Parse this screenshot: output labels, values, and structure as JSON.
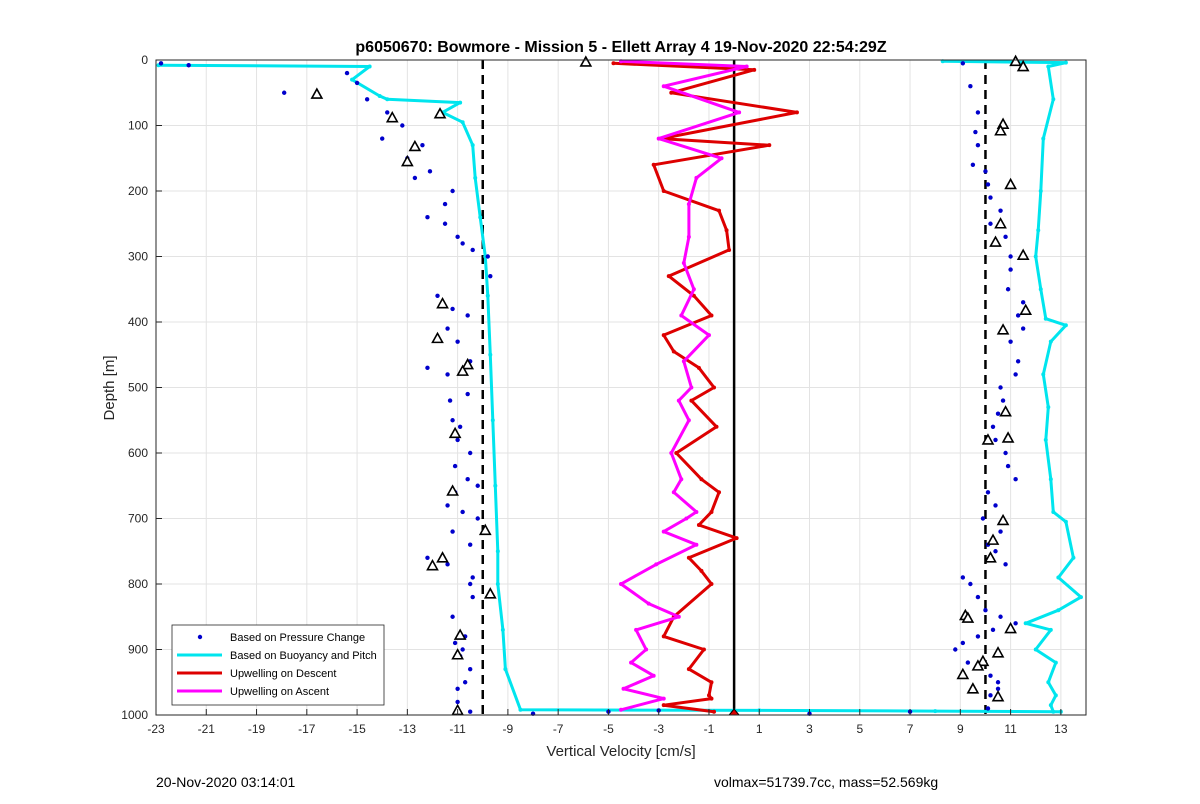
{
  "chart_data": {
    "type": "scatter",
    "title": "p6050670: Bowmore - Mission 5 - Ellett Array 4 19-Nov-2020 22:54:29Z",
    "xlabel": "Vertical Velocity [cm/s]",
    "ylabel": "Depth [m]",
    "xlim": [
      -23,
      14
    ],
    "ylim": [
      0,
      1000
    ],
    "y_reversed": true,
    "grid": true,
    "xticks": [
      "-23",
      "-21",
      "-19",
      "-17",
      "-15",
      "-13",
      "-11",
      "-9",
      "-7",
      "-5",
      "-3",
      "-1",
      "1",
      "3",
      "5",
      "7",
      "9",
      "11",
      "13"
    ],
    "yticks": [
      "0",
      "100",
      "200",
      "300",
      "400",
      "500",
      "600",
      "700",
      "800",
      "900",
      "1000"
    ],
    "legend_location": "bottom-left",
    "legend": [
      {
        "label": "Based on Pressure Change",
        "color": "#0000cc",
        "style": "dots"
      },
      {
        "label": "Based on Buoyancy and Pitch",
        "color": "#00e5ee",
        "style": "line"
      },
      {
        "label": "Upwelling on Descent",
        "color": "#dd0000",
        "style": "line"
      },
      {
        "label": "Upwelling on Ascent",
        "color": "#ff00ff",
        "style": "line"
      }
    ],
    "reference_lines": [
      {
        "x": -10,
        "style": "dashed",
        "color": "#000000"
      },
      {
        "x": 10,
        "style": "dashed",
        "color": "#000000"
      },
      {
        "x": 0,
        "style": "solid",
        "color": "#000000"
      }
    ],
    "series": [
      {
        "name": "Based on Buoyancy and Pitch",
        "color": "#00e5ee",
        "kind": "line",
        "x": [
          -22.9,
          -14.5,
          -15.2,
          -14.1,
          -13.8,
          -10.9,
          -11.6,
          -10.8,
          -10.4,
          -10.3,
          -10.1,
          -9.9,
          -9.8,
          -9.7,
          -9.6,
          -9.5,
          -9.4,
          -9.4,
          -9.2,
          -9.1,
          -8.5,
          1,
          8,
          13.0
        ],
        "y": [
          8,
          10,
          30,
          55,
          60,
          65,
          80,
          95,
          130,
          180,
          240,
          300,
          360,
          450,
          550,
          650,
          750,
          800,
          870,
          930,
          992,
          993,
          994,
          995
        ]
      },
      {
        "name": "Based on Buoyancy and Pitch",
        "color": "#00e5ee",
        "kind": "line",
        "x": [
          8.3,
          13.2,
          12.5,
          12.7,
          12.3,
          12.2,
          12.1,
          12.0,
          12.2,
          12.4,
          13.2,
          12.6,
          12.3,
          12.5,
          12.4,
          12.6,
          12.7,
          13.2,
          13.5,
          12.9,
          13.8,
          12.9,
          11.6,
          12.6,
          12.0,
          12.8,
          12.5,
          12.8,
          12.6,
          12.7
        ],
        "y": [
          2,
          4,
          10,
          60,
          120,
          200,
          260,
          300,
          350,
          395,
          405,
          430,
          480,
          530,
          580,
          640,
          690,
          705,
          760,
          790,
          820,
          840,
          860,
          870,
          900,
          920,
          950,
          970,
          985,
          995
        ]
      },
      {
        "name": "Upwelling on Descent",
        "color": "#dd0000",
        "kind": "line",
        "x": [
          -4.8,
          0.8,
          -2.5,
          2.5,
          -2.9,
          1.4,
          -3.2,
          -2.8,
          -0.6,
          -0.3,
          -0.2,
          -2.6,
          -1.6,
          -0.9,
          -2.8,
          -2.4,
          -1.4,
          -0.8,
          -1.7,
          -0.7,
          -2.3,
          -1.3,
          -0.6,
          -0.9,
          -1.4,
          0.1,
          -1.8,
          -1.3,
          -0.9,
          -2.4,
          -2.8,
          -1.2,
          -1.8,
          -0.9,
          -1.0,
          -0.9,
          -2.8,
          -0.8
        ],
        "y": [
          5,
          15,
          50,
          80,
          120,
          130,
          160,
          200,
          230,
          260,
          290,
          330,
          360,
          390,
          420,
          445,
          470,
          500,
          520,
          560,
          600,
          640,
          660,
          690,
          710,
          730,
          760,
          780,
          800,
          850,
          880,
          900,
          930,
          950,
          970,
          975,
          985,
          995
        ]
      },
      {
        "name": "Upwelling on Ascent",
        "color": "#ff00ff",
        "kind": "line",
        "x": [
          -4.5,
          0.5,
          -2.8,
          0.2,
          -3.0,
          -0.5,
          -1.5,
          -1.8,
          -1.8,
          -2.0,
          -1.6,
          -2.1,
          -1.0,
          -2.0,
          -1.7,
          -2.2,
          -1.8,
          -2.5,
          -2.1,
          -2.4,
          -1.5,
          -1.9,
          -2.8,
          -1.5,
          -3.1,
          -4.5,
          -3.4,
          -2.2,
          -3.9,
          -3.5,
          -4.1,
          -3.2,
          -4.4,
          -2.8,
          -4.5
        ],
        "y": [
          2,
          10,
          40,
          80,
          120,
          150,
          180,
          220,
          270,
          310,
          350,
          390,
          420,
          460,
          500,
          520,
          550,
          600,
          640,
          660,
          690,
          700,
          720,
          740,
          770,
          800,
          830,
          850,
          870,
          900,
          920,
          940,
          960,
          975,
          992
        ]
      },
      {
        "name": "Based on Pressure Change",
        "color": "#0000cc",
        "kind": "dots",
        "x": [
          -22.8,
          -21.7,
          -17.9,
          -15.4,
          -15.0,
          -14.6,
          -13.8,
          -13.2,
          -14.0,
          -12.4,
          -13.0,
          -12.1,
          -12.7,
          -11.2,
          -11.5,
          -12.2,
          -11.5,
          -11.0,
          -10.8,
          -10.4,
          -9.8,
          -9.7,
          -11.8,
          -11.2,
          -10.6,
          -11.4,
          -11.0,
          -10.5,
          -12.2,
          -11.4,
          -10.6,
          -11.3,
          -11.2,
          -10.9,
          -11.0,
          -10.5,
          -11.1,
          -10.6,
          -10.2,
          -11.1,
          -11.4,
          -10.8,
          -10.2,
          -11.2,
          -10.5,
          -12.2,
          -11.4,
          -10.4,
          -10.5,
          -10.4,
          -11.2,
          -10.7,
          -11.1,
          -10.8,
          -10.9,
          -10.5,
          -10.7,
          -11.0,
          -11.0,
          -10.5,
          -8,
          -5,
          -3,
          3,
          7,
          9.1,
          9.4,
          9.7,
          9.6,
          9.7,
          9.5,
          10.0,
          10.1,
          10.2,
          10.6,
          10.2,
          10.8,
          11.0,
          11.0,
          10.9,
          11.5,
          11.3,
          11.5,
          11.0,
          11.3,
          11.2,
          10.6,
          10.7,
          10.5,
          10.3,
          10.4,
          10.8,
          10.9,
          11.2,
          10.1,
          10.4,
          9.9,
          10.6,
          10.1,
          10.4,
          10.8,
          9.1,
          9.4,
          9.7,
          10.0,
          10.6,
          11.2,
          10.3,
          9.7,
          9.1,
          8.8,
          9.3,
          10.2,
          10.5,
          10.5,
          10.2,
          10.1
        ],
        "y": [
          5,
          8,
          50,
          20,
          35,
          60,
          80,
          100,
          120,
          130,
          150,
          170,
          180,
          200,
          220,
          240,
          250,
          270,
          280,
          290,
          300,
          330,
          360,
          380,
          390,
          410,
          430,
          460,
          470,
          480,
          510,
          520,
          550,
          560,
          580,
          600,
          620,
          640,
          650,
          660,
          680,
          690,
          700,
          720,
          740,
          760,
          770,
          790,
          800,
          820,
          850,
          880,
          890,
          900,
          910,
          930,
          950,
          960,
          980,
          995,
          998,
          995,
          993,
          998,
          995,
          5,
          40,
          80,
          110,
          130,
          160,
          170,
          190,
          210,
          230,
          250,
          270,
          300,
          320,
          350,
          370,
          390,
          410,
          430,
          460,
          480,
          500,
          520,
          540,
          560,
          580,
          600,
          620,
          640,
          660,
          680,
          700,
          720,
          740,
          750,
          770,
          790,
          800,
          820,
          840,
          850,
          860,
          870,
          880,
          890,
          900,
          920,
          940,
          950,
          960,
          970,
          990
        ]
      },
      {
        "name": "Based on Pressure Change",
        "color": "#000000",
        "kind": "triangles",
        "x": [
          -5.9,
          -16.6,
          -11.7,
          -13.6,
          -12.7,
          -13.0,
          -11.6,
          -11.8,
          -10.6,
          -10.8,
          -11.1,
          -11.2,
          -9.9,
          -12.0,
          -11.6,
          -9.7,
          -10.9,
          -11.0,
          -11.0,
          11.2,
          11.5,
          10.7,
          10.6,
          11.0,
          10.6,
          10.4,
          11.5,
          11.6,
          10.7,
          10.8,
          10.9,
          10.1,
          10.7,
          9.2,
          9.3,
          10.3,
          10.2,
          11.0,
          10.5,
          9.9,
          9.7,
          9.1,
          9.5,
          10.5
        ],
        "y": [
          3,
          52,
          82,
          88,
          132,
          155,
          372,
          425,
          465,
          475,
          570,
          658,
          718,
          772,
          760,
          815,
          878,
          908,
          993,
          2,
          10,
          98,
          108,
          190,
          250,
          278,
          298,
          382,
          412,
          537,
          577,
          580,
          703,
          848,
          852,
          733,
          760,
          868,
          905,
          918,
          925,
          938,
          960,
          972
        ]
      }
    ]
  },
  "footer": {
    "timestamp": "20-Nov-2020 03:14:01",
    "metrics": "volmax=51739.7cc, mass=52.569kg"
  }
}
